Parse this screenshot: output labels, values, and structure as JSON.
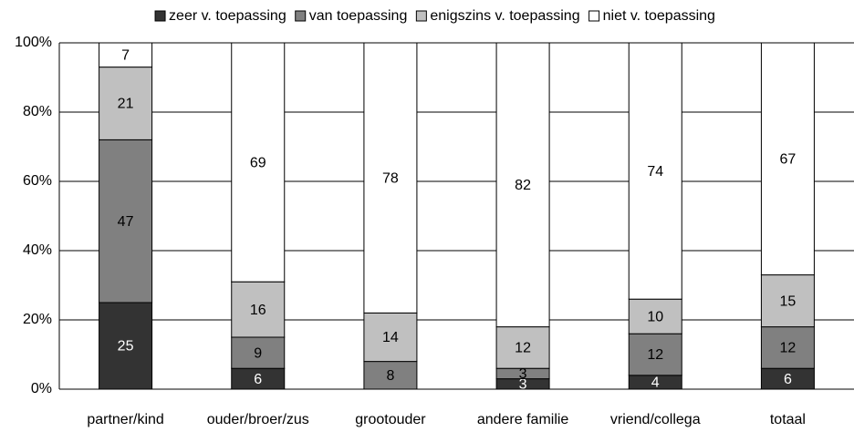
{
  "chart_data": {
    "type": "stacked_bar",
    "categories": [
      "partner/kind",
      "ouder/broer/zus",
      "grootouder",
      "andere familie",
      "vriend/collega",
      "totaal"
    ],
    "series": [
      {
        "name": "zeer v. toepassing",
        "color": "#333333",
        "values": [
          25,
          6,
          0,
          3,
          4,
          6
        ]
      },
      {
        "name": "van toepassing",
        "color": "#808080",
        "values": [
          47,
          9,
          8,
          3,
          12,
          12
        ]
      },
      {
        "name": "enigszins v. toepassing",
        "color": "#c0c0c0",
        "values": [
          21,
          16,
          14,
          12,
          10,
          15
        ]
      },
      {
        "name": "niet v. toepassing",
        "color": "#ffffff",
        "values": [
          7,
          69,
          78,
          82,
          74,
          67
        ]
      }
    ],
    "ylim": [
      0,
      100
    ],
    "yticks": [
      {
        "value": 0,
        "label": "0%"
      },
      {
        "value": 20,
        "label": "20%"
      },
      {
        "value": 40,
        "label": "40%"
      },
      {
        "value": 60,
        "label": "60%"
      },
      {
        "value": 80,
        "label": "80%"
      },
      {
        "value": 100,
        "label": "100%"
      }
    ],
    "grid": true,
    "legend": "top"
  }
}
